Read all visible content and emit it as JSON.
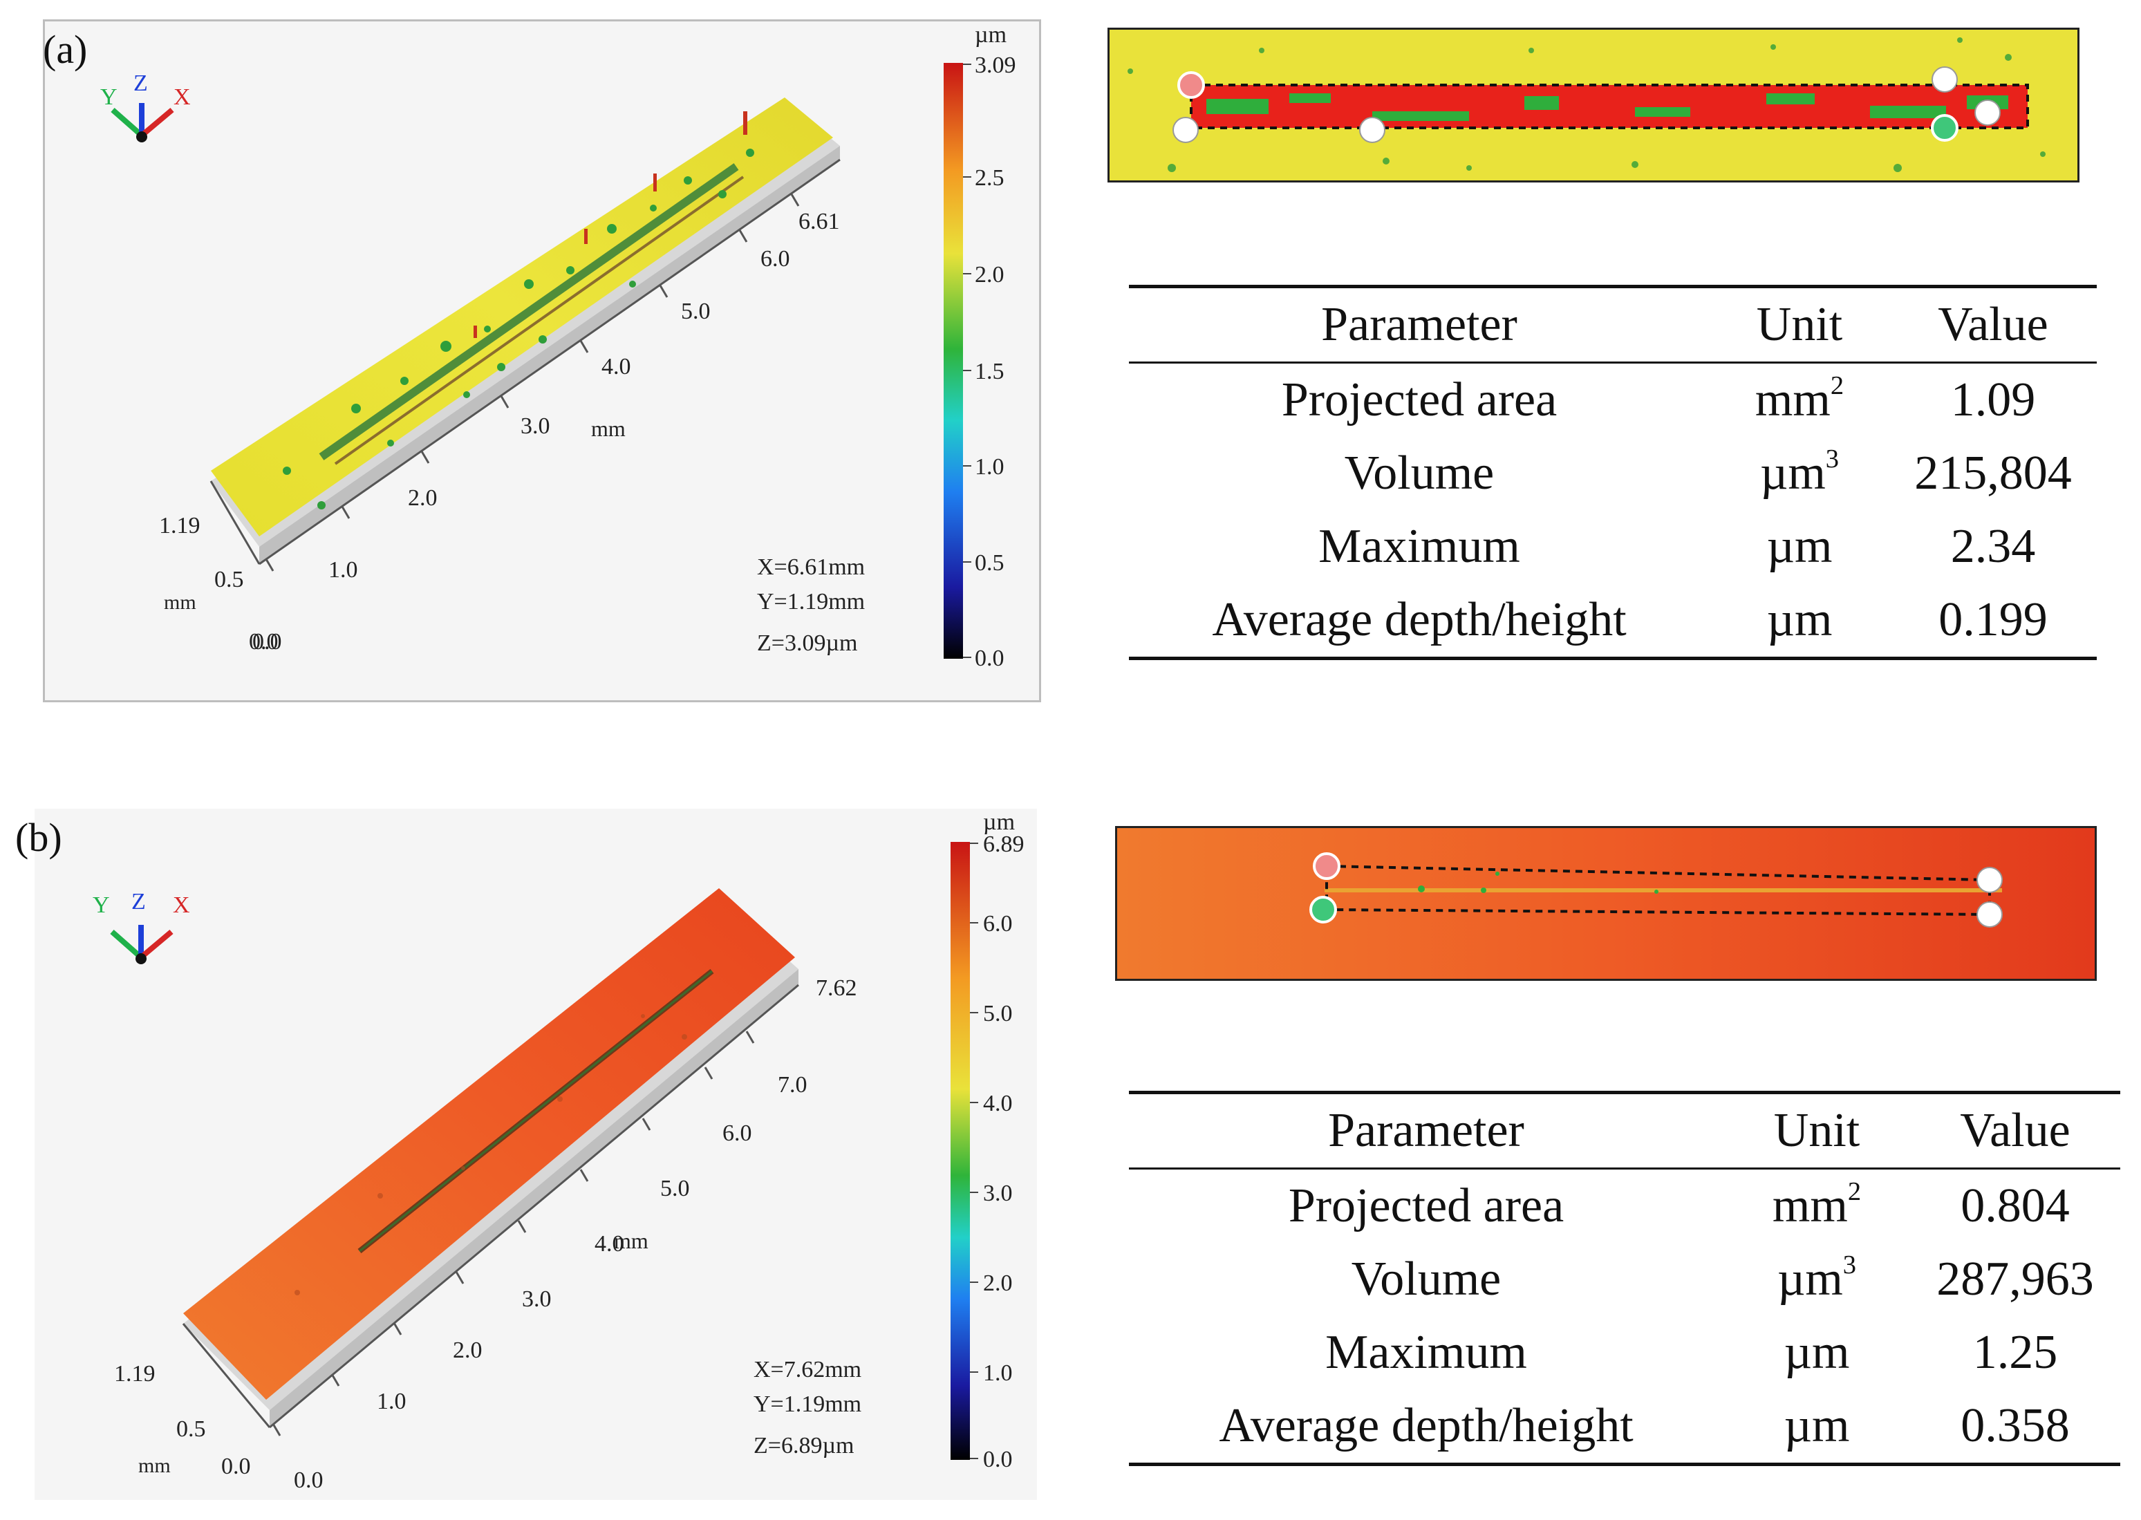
{
  "colors": {
    "yellow": "#e9e23a",
    "orange": "#f0632a",
    "red": "#e8221b",
    "green": "#2fae3c"
  },
  "panels": [
    {
      "label": "(a)",
      "axes_letters": {
        "y": "Y",
        "z": "Z",
        "x": "X"
      },
      "colorbar": {
        "unit": "µm",
        "ticks": [
          "3.09",
          "2.5",
          "2.0",
          "1.5",
          "1.0",
          "0.5",
          "0.0"
        ]
      },
      "x_ticks": [
        "0.0",
        "1.0",
        "2.0",
        "3.0",
        "4.0",
        "5.0",
        "6.0",
        "6.61"
      ],
      "x_unit": "mm",
      "y_ticks": [
        "0.0",
        "0.5",
        "1.19"
      ],
      "y_unit": "mm",
      "readout": {
        "x": "X=6.61mm",
        "y": "Y=1.19mm",
        "z": "Z=3.09µm"
      },
      "table": {
        "headers": [
          "Parameter",
          "Unit",
          "Value"
        ],
        "rows": [
          {
            "param": "Projected area",
            "unit_base": "mm",
            "unit_sup": "2",
            "value": "1.09"
          },
          {
            "param": "Volume",
            "unit_base": "µm",
            "unit_sup": "3",
            "value": "215,804"
          },
          {
            "param": "Maximum",
            "unit_base": "µm",
            "unit_sup": "",
            "value": "2.34"
          },
          {
            "param": "Average depth/height",
            "unit_base": "µm",
            "unit_sup": "",
            "value": "0.199"
          }
        ]
      }
    },
    {
      "label": "(b)",
      "axes_letters": {
        "y": "Y",
        "z": "Z",
        "x": "X"
      },
      "colorbar": {
        "unit": "µm",
        "ticks": [
          "6.89",
          "6.0",
          "5.0",
          "4.0",
          "3.0",
          "2.0",
          "1.0",
          "0.0"
        ]
      },
      "x_ticks": [
        "0.0",
        "1.0",
        "2.0",
        "3.0",
        "4.0",
        "5.0",
        "6.0",
        "7.0",
        "7.62"
      ],
      "x_unit": "mm",
      "y_ticks": [
        "0.0",
        "0.5",
        "1.19"
      ],
      "y_unit": "mm",
      "readout": {
        "x": "X=7.62mm",
        "y": "Y=1.19mm",
        "z": "Z=6.89µm"
      },
      "table": {
        "headers": [
          "Parameter",
          "Unit",
          "Value"
        ],
        "rows": [
          {
            "param": "Projected area",
            "unit_base": "mm",
            "unit_sup": "2",
            "value": "0.804"
          },
          {
            "param": "Volume",
            "unit_base": "µm",
            "unit_sup": "3",
            "value": "287,963"
          },
          {
            "param": "Maximum",
            "unit_base": "µm",
            "unit_sup": "",
            "value": "1.25"
          },
          {
            "param": "Average depth/height",
            "unit_base": "µm",
            "unit_sup": "",
            "value": "0.358"
          }
        ]
      }
    }
  ]
}
